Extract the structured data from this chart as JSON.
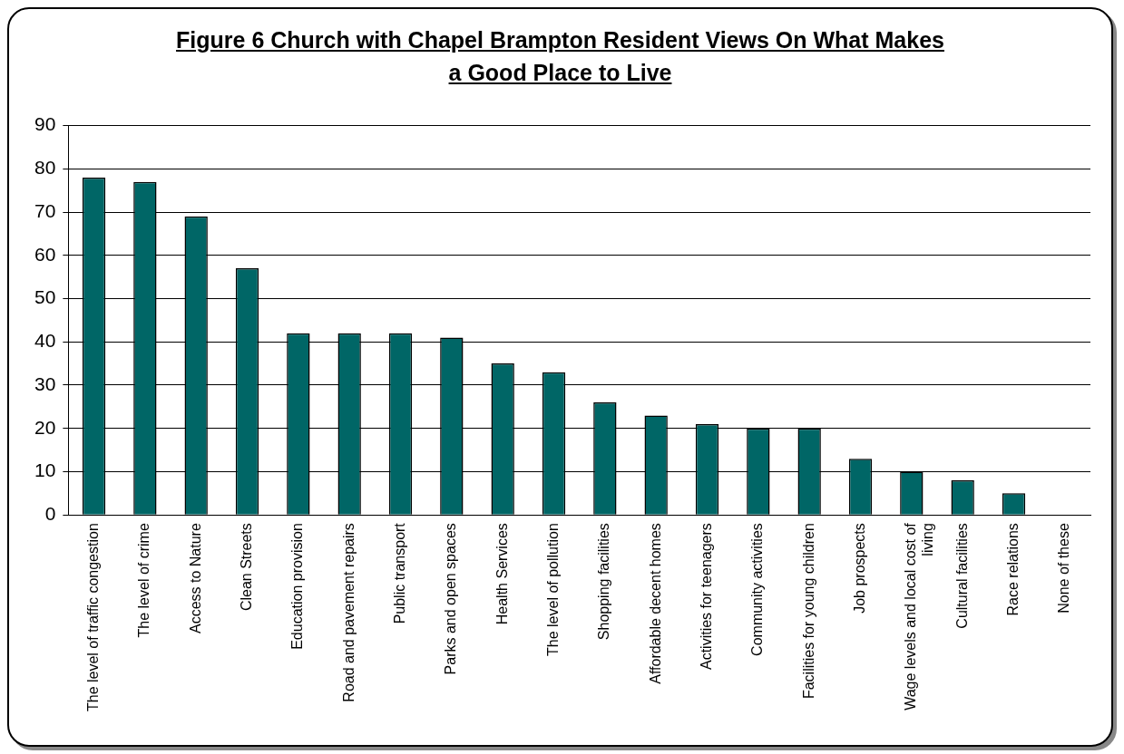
{
  "chart_data": {
    "type": "bar",
    "title": "Figure 6 Church with Chapel Brampton Resident Views On What Makes a Good Place to Live",
    "categories": [
      "The level of traffic congestion",
      "The level of crime",
      "Access to Nature",
      "Clean Streets",
      "Education provision",
      "Road and pavement repairs",
      "Public transport",
      "Parks and open spaces",
      "Health Services",
      "The level of pollution",
      "Shopping facilities",
      "Affordable decent homes",
      "Activities for teenagers",
      "Community activities",
      "Facilities for young children",
      "Job prospects",
      "Wage levels and local cost of living",
      "Cultural facilities",
      "Race relations",
      "None of these"
    ],
    "values": [
      78,
      77,
      69,
      57,
      42,
      42,
      42,
      41,
      35,
      33,
      26,
      23,
      21,
      20,
      20,
      13,
      10,
      8,
      5,
      0
    ],
    "color": "#006666",
    "ylim": [
      0,
      90
    ],
    "yticks": [
      0,
      10,
      20,
      30,
      40,
      50,
      60,
      70,
      80,
      90
    ],
    "grid": "y"
  }
}
